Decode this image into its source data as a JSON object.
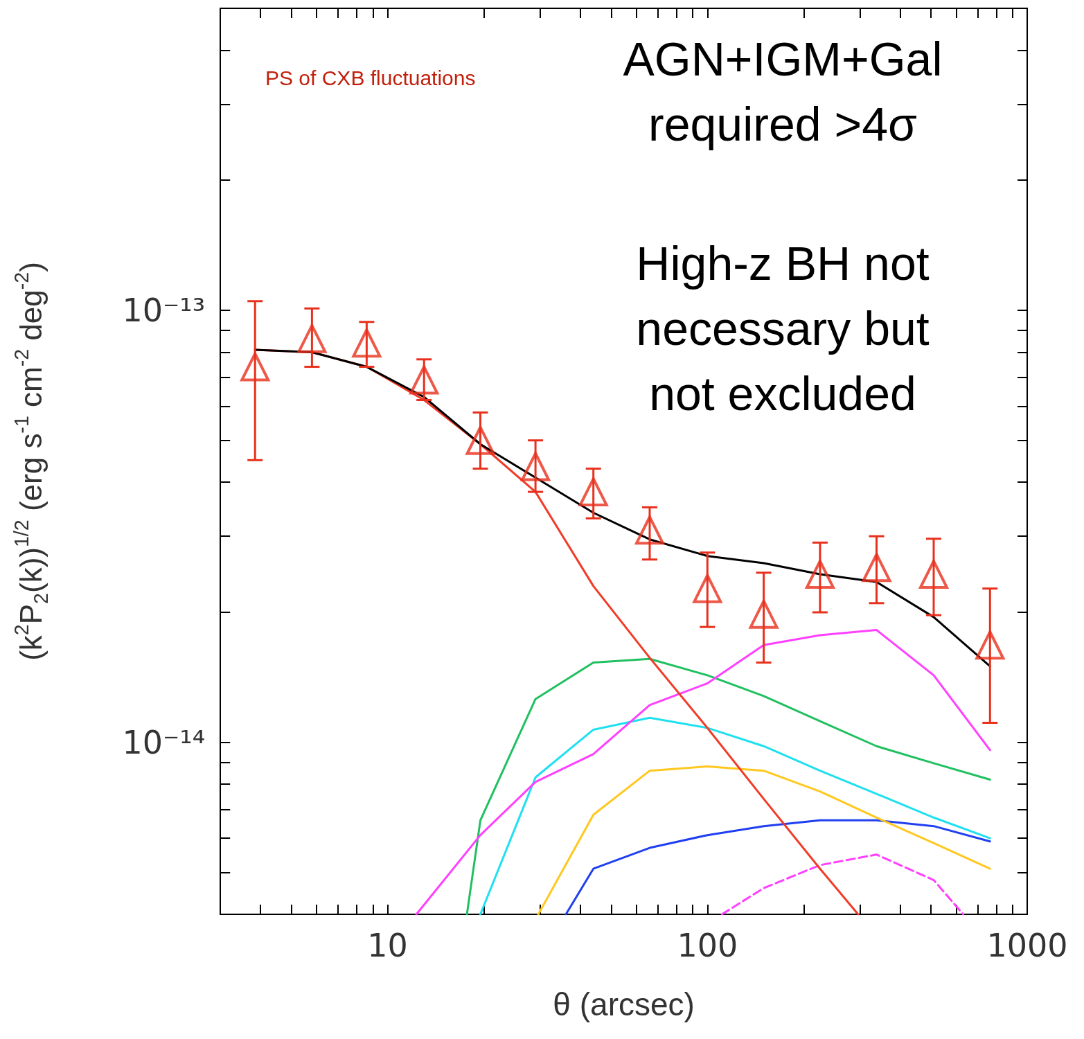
{
  "chart_data": {
    "type": "line",
    "xlabel": "θ (arcsec)",
    "ylabel": "(k$^{2}$P$_{2}$(k))$^{1/2}$ (erg s$^{-1}$ cm$^{-2}$ deg$^{-2}$)",
    "annotations": [
      "PS of CXB fluctuations",
      "AGN+IGM+Gal\nrequired >4σ",
      "High-z BH not\nnecessary but\nnot excluded"
    ],
    "log": "xy",
    "grid": false,
    "xlim": [
      3,
      1000
    ],
    "xticks": [
      {
        "value": 3,
        "label": null
      },
      {
        "value": 4,
        "label": null
      },
      {
        "value": 5,
        "label": null
      },
      {
        "value": 6,
        "label": null
      },
      {
        "value": 7,
        "label": null
      },
      {
        "value": 8,
        "label": null
      },
      {
        "value": 9,
        "label": null
      },
      10,
      {
        "value": 20,
        "label": null
      },
      {
        "value": 30,
        "label": null
      },
      {
        "value": 40,
        "label": null
      },
      {
        "value": 50,
        "label": null
      },
      {
        "value": 60,
        "label": null
      },
      {
        "value": 70,
        "label": null
      },
      {
        "value": 80,
        "label": null
      },
      {
        "value": 90,
        "label": null
      },
      100,
      {
        "value": 200,
        "label": null
      },
      {
        "value": 300,
        "label": null
      },
      {
        "value": 400,
        "label": null
      },
      {
        "value": 500,
        "label": null
      },
      {
        "value": 600,
        "label": null
      },
      {
        "value": 700,
        "label": null
      },
      {
        "value": 800,
        "label": null
      },
      {
        "value": 900,
        "label": null
      },
      1000
    ],
    "ylim": [
      4e-15,
      5e-13
    ],
    "yticks": [
      {
        "value": 4e-15,
        "label": null
      },
      {
        "value": 5e-15,
        "label": null
      },
      {
        "value": 6e-15,
        "label": null
      },
      {
        "value": 7e-15,
        "label": null
      },
      {
        "value": 8e-15,
        "label": null
      },
      {
        "value": 9e-15,
        "label": null
      },
      {
        "value": 1e-14,
        "label": "10⁻¹⁴"
      },
      {
        "value": 2e-14,
        "label": null
      },
      {
        "value": 3e-14,
        "label": null
      },
      {
        "value": 4e-14,
        "label": null
      },
      {
        "value": 5e-14,
        "label": null
      },
      {
        "value": 6e-14,
        "label": null
      },
      {
        "value": 7e-14,
        "label": null
      },
      {
        "value": 8e-14,
        "label": null
      },
      {
        "value": 9e-14,
        "label": null
      },
      {
        "value": 1e-13,
        "label": "10⁻¹³"
      },
      {
        "value": 2e-13,
        "label": null
      },
      {
        "value": 3e-13,
        "label": null
      },
      {
        "value": 4e-13,
        "label": null
      },
      {
        "value": 5e-13,
        "label": null
      }
    ],
    "series": [
      {
        "color": "#2040f0",
        "marker": "none",
        "line_style": "solid",
        "x": [
          36.1,
          44,
          66,
          100,
          150,
          225,
          338,
          510,
          765
        ],
        "values": [
          4e-15,
          5.1e-15,
          5.7e-15,
          6.1e-15,
          6.4e-15,
          6.6e-15,
          6.6e-15,
          6.4e-15,
          5.9e-15
        ]
      },
      {
        "color": "#ffc820",
        "marker": "none",
        "line_style": "solid",
        "x": [
          29.6,
          44,
          66,
          100,
          150,
          225,
          338,
          510,
          765
        ],
        "values": [
          4e-15,
          6.8e-15,
          8.6e-15,
          8.8e-15,
          8.6e-15,
          7.7e-15,
          6.7e-15,
          5.85e-15,
          5.1e-15
        ]
      },
      {
        "color": "#20e0f0",
        "marker": "none",
        "line_style": "solid",
        "x": [
          19.5,
          29,
          44,
          66,
          100,
          150,
          225,
          338,
          510,
          765
        ],
        "values": [
          4e-15,
          8.3e-15,
          1.07e-14,
          1.14e-14,
          1.08e-14,
          9.8e-15,
          8.6e-15,
          7.6e-15,
          6.7e-15,
          6e-15
        ]
      },
      {
        "color": "#20c060",
        "marker": "none",
        "line_style": "solid",
        "x": [
          17.7,
          19.5,
          29,
          44,
          66,
          100,
          150,
          225,
          338,
          510,
          765
        ],
        "values": [
          4e-15,
          6.6e-15,
          1.26e-14,
          1.53e-14,
          1.56e-14,
          1.43e-14,
          1.28e-14,
          1.12e-14,
          9.8e-15,
          8.95e-15,
          8.2e-15
        ]
      },
      {
        "color": "#ff40ff",
        "marker": "none",
        "line_style": "solid",
        "x": [
          12.3,
          19.5,
          29,
          44,
          66,
          100,
          150,
          225,
          338,
          510,
          765
        ],
        "values": [
          4e-15,
          6.1e-15,
          8.1e-15,
          9.4e-15,
          1.22e-14,
          1.37e-14,
          1.68e-14,
          1.77e-14,
          1.82e-14,
          1.43e-14,
          9.6e-15
        ]
      },
      {
        "color": "#ff40ff",
        "marker": "none",
        "line_style": "dashed",
        "x": [
          111,
          150,
          225,
          338,
          510,
          631
        ],
        "values": [
          4e-15,
          4.6e-15,
          5.2e-15,
          5.5e-15,
          4.8e-15,
          4e-15
        ]
      },
      {
        "color": "#f03c28",
        "marker": "none",
        "line_style": "solid",
        "x": [
          3.85,
          5.8,
          8.6,
          13,
          19.5,
          29,
          44,
          66,
          100,
          150,
          225,
          296
        ],
        "values": [
          8.1e-14,
          8e-14,
          7.4e-14,
          6.2e-14,
          4.9e-14,
          3.8e-14,
          2.3e-14,
          1.57e-14,
          1.08e-14,
          7.4e-15,
          5.1e-15,
          4e-15
        ]
      },
      {
        "color": "#000000",
        "marker": "none",
        "line_style": "solid",
        "x": [
          3.85,
          5.8,
          8.6,
          13,
          19.5,
          29,
          44,
          66,
          100,
          150,
          225,
          338,
          510,
          765
        ],
        "values": [
          8.1e-14,
          8e-14,
          7.4e-14,
          6.3e-14,
          4.9e-14,
          4.1e-14,
          3.4e-14,
          2.95e-14,
          2.7e-14,
          2.6e-14,
          2.45e-14,
          2.35e-14,
          1.95e-14,
          1.5e-14
        ]
      },
      {
        "type": "scatter",
        "color": "#e8301c",
        "marker": "triangle",
        "x": [
          3.85,
          5.8,
          8.6,
          13,
          19.5,
          29,
          44,
          66,
          100,
          150,
          225,
          338,
          510,
          765
        ],
        "values": [
          7.4e-14,
          8.6e-14,
          8.4e-14,
          6.9e-14,
          5e-14,
          4.35e-14,
          3.8e-14,
          3.1e-14,
          2.27e-14,
          1.98e-14,
          2.45e-14,
          2.54e-14,
          2.45e-14,
          1.68e-14
        ],
        "errors": [
          [
            4.5e-14,
            1.05e-13
          ],
          [
            7.4e-14,
            1.01e-13
          ],
          [
            7.4e-14,
            9.4e-14
          ],
          [
            6.2e-14,
            7.7e-14
          ],
          [
            4.3e-14,
            5.8e-14
          ],
          [
            3.8e-14,
            5e-14
          ],
          [
            3.3e-14,
            4.3e-14
          ],
          [
            2.65e-14,
            3.5e-14
          ],
          [
            1.85e-14,
            2.75e-14
          ],
          [
            1.53e-14,
            2.47e-14
          ],
          [
            2e-14,
            2.9e-14
          ],
          [
            2.1e-14,
            3e-14
          ],
          [
            1.97e-14,
            2.96e-14
          ],
          [
            1.11e-14,
            2.27e-14
          ]
        ]
      }
    ]
  }
}
